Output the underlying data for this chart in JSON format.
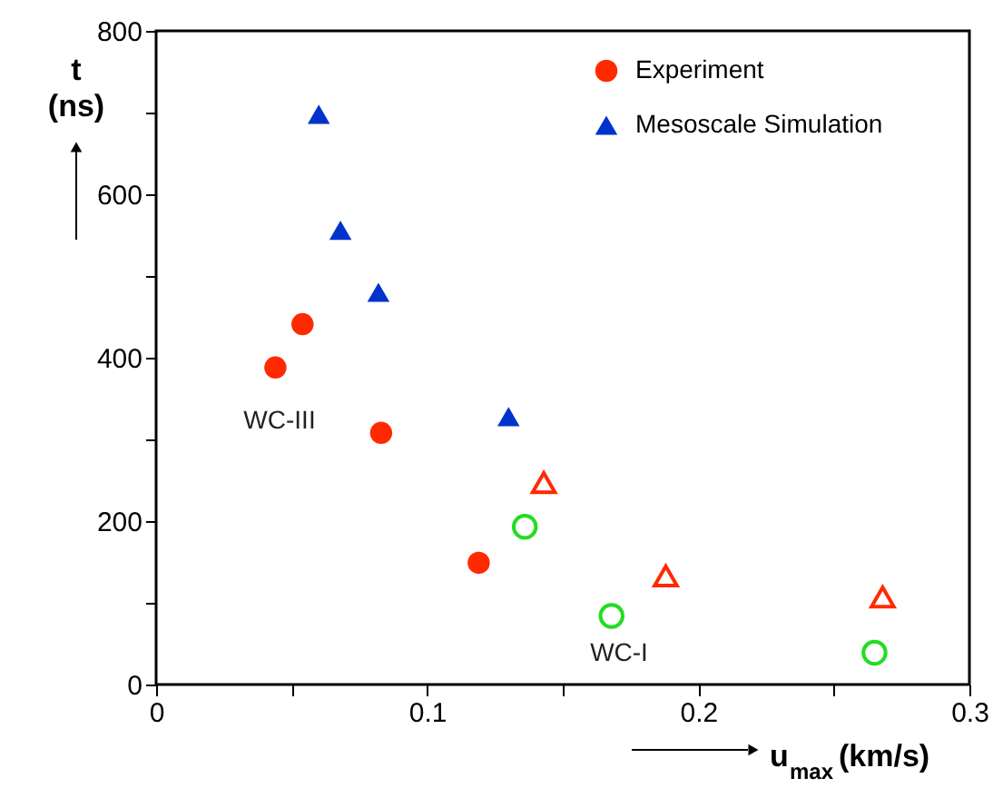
{
  "chart_data": {
    "type": "scatter",
    "xlabel": "u$_{max}$ (km/s)",
    "ylabel": "t (ns)",
    "xlim": [
      0,
      0.3
    ],
    "xticks": [
      0,
      {
        "value": 0.05,
        "label": null
      },
      0.1,
      {
        "value": 0.15,
        "label": null
      },
      0.2,
      {
        "value": 0.25,
        "label": null
      },
      0.3
    ],
    "ylim": [
      0,
      800
    ],
    "yticks": [
      0,
      {
        "value": 100,
        "label": null
      },
      200,
      {
        "value": 300,
        "label": null
      },
      400,
      {
        "value": 500,
        "label": null
      },
      600,
      {
        "value": 700,
        "label": null
      },
      800
    ],
    "grid": false,
    "legend": "top right",
    "series": [
      {
        "name": "Experiment",
        "color": "#ff2a00",
        "marker": "circle",
        "x": [
          0.054,
          0.044,
          0.083,
          0.119
        ],
        "values": [
          441,
          388,
          308,
          149
        ]
      },
      {
        "name": "Mesoscale Simulation",
        "color": "#0033cc",
        "marker": "triangle",
        "x": [
          0.06,
          0.068,
          0.082,
          0.13
        ],
        "values": [
          698,
          556,
          480,
          328
        ]
      },
      {
        "color": "#ff2a00",
        "marker": "triangle",
        "x": [
          0.143,
          0.188,
          0.268
        ],
        "values": [
          247,
          133,
          107
        ]
      },
      {
        "color": "#22dd22",
        "marker": "circle",
        "x": [
          0.136,
          0.168,
          0.265
        ],
        "values": [
          193,
          84,
          39
        ]
      }
    ],
    "annotations": [
      "WC-III",
      "WC-I"
    ]
  }
}
